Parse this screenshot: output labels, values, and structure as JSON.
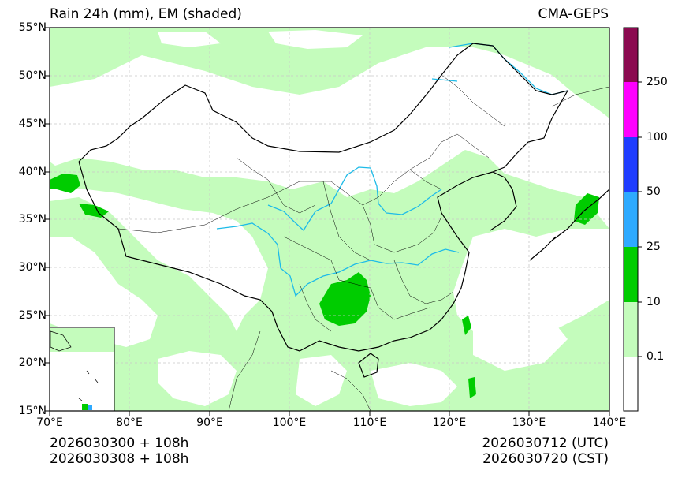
{
  "title": {
    "left": "Rain 24h (mm), EM (shaded)",
    "right": "CMA-GEPS"
  },
  "footer": {
    "init_utc": "2026030300 + 108h",
    "init_cst": "2026030308 + 108h",
    "valid_utc": "2026030712 (UTC)",
    "valid_cst": "2026030720 (CST)"
  },
  "axes": {
    "lat_labels": [
      "55°N",
      "50°N",
      "45°N",
      "40°N",
      "35°N",
      "30°N",
      "25°N",
      "20°N",
      "15°N"
    ],
    "lon_labels": [
      "70°E",
      "80°E",
      "90°E",
      "100°E",
      "110°E",
      "120°E",
      "130°E",
      "140°E"
    ],
    "lat_range": [
      15,
      55
    ],
    "lon_range": [
      70,
      140
    ]
  },
  "colorbar": {
    "labels": [
      "0.1",
      "10",
      "25",
      "50",
      "100",
      "250"
    ],
    "colors": [
      "#ffffff",
      "#c4fcbc",
      "#00cc00",
      "#2eaaff",
      "#1f3dff",
      "#ff00ff",
      "#8b0a50"
    ]
  },
  "map_colors": {
    "light_rain": "#c4fcbc",
    "moderate_rain": "#00cc00",
    "rivers": "#1ebbe8",
    "borders": "#000000"
  }
}
